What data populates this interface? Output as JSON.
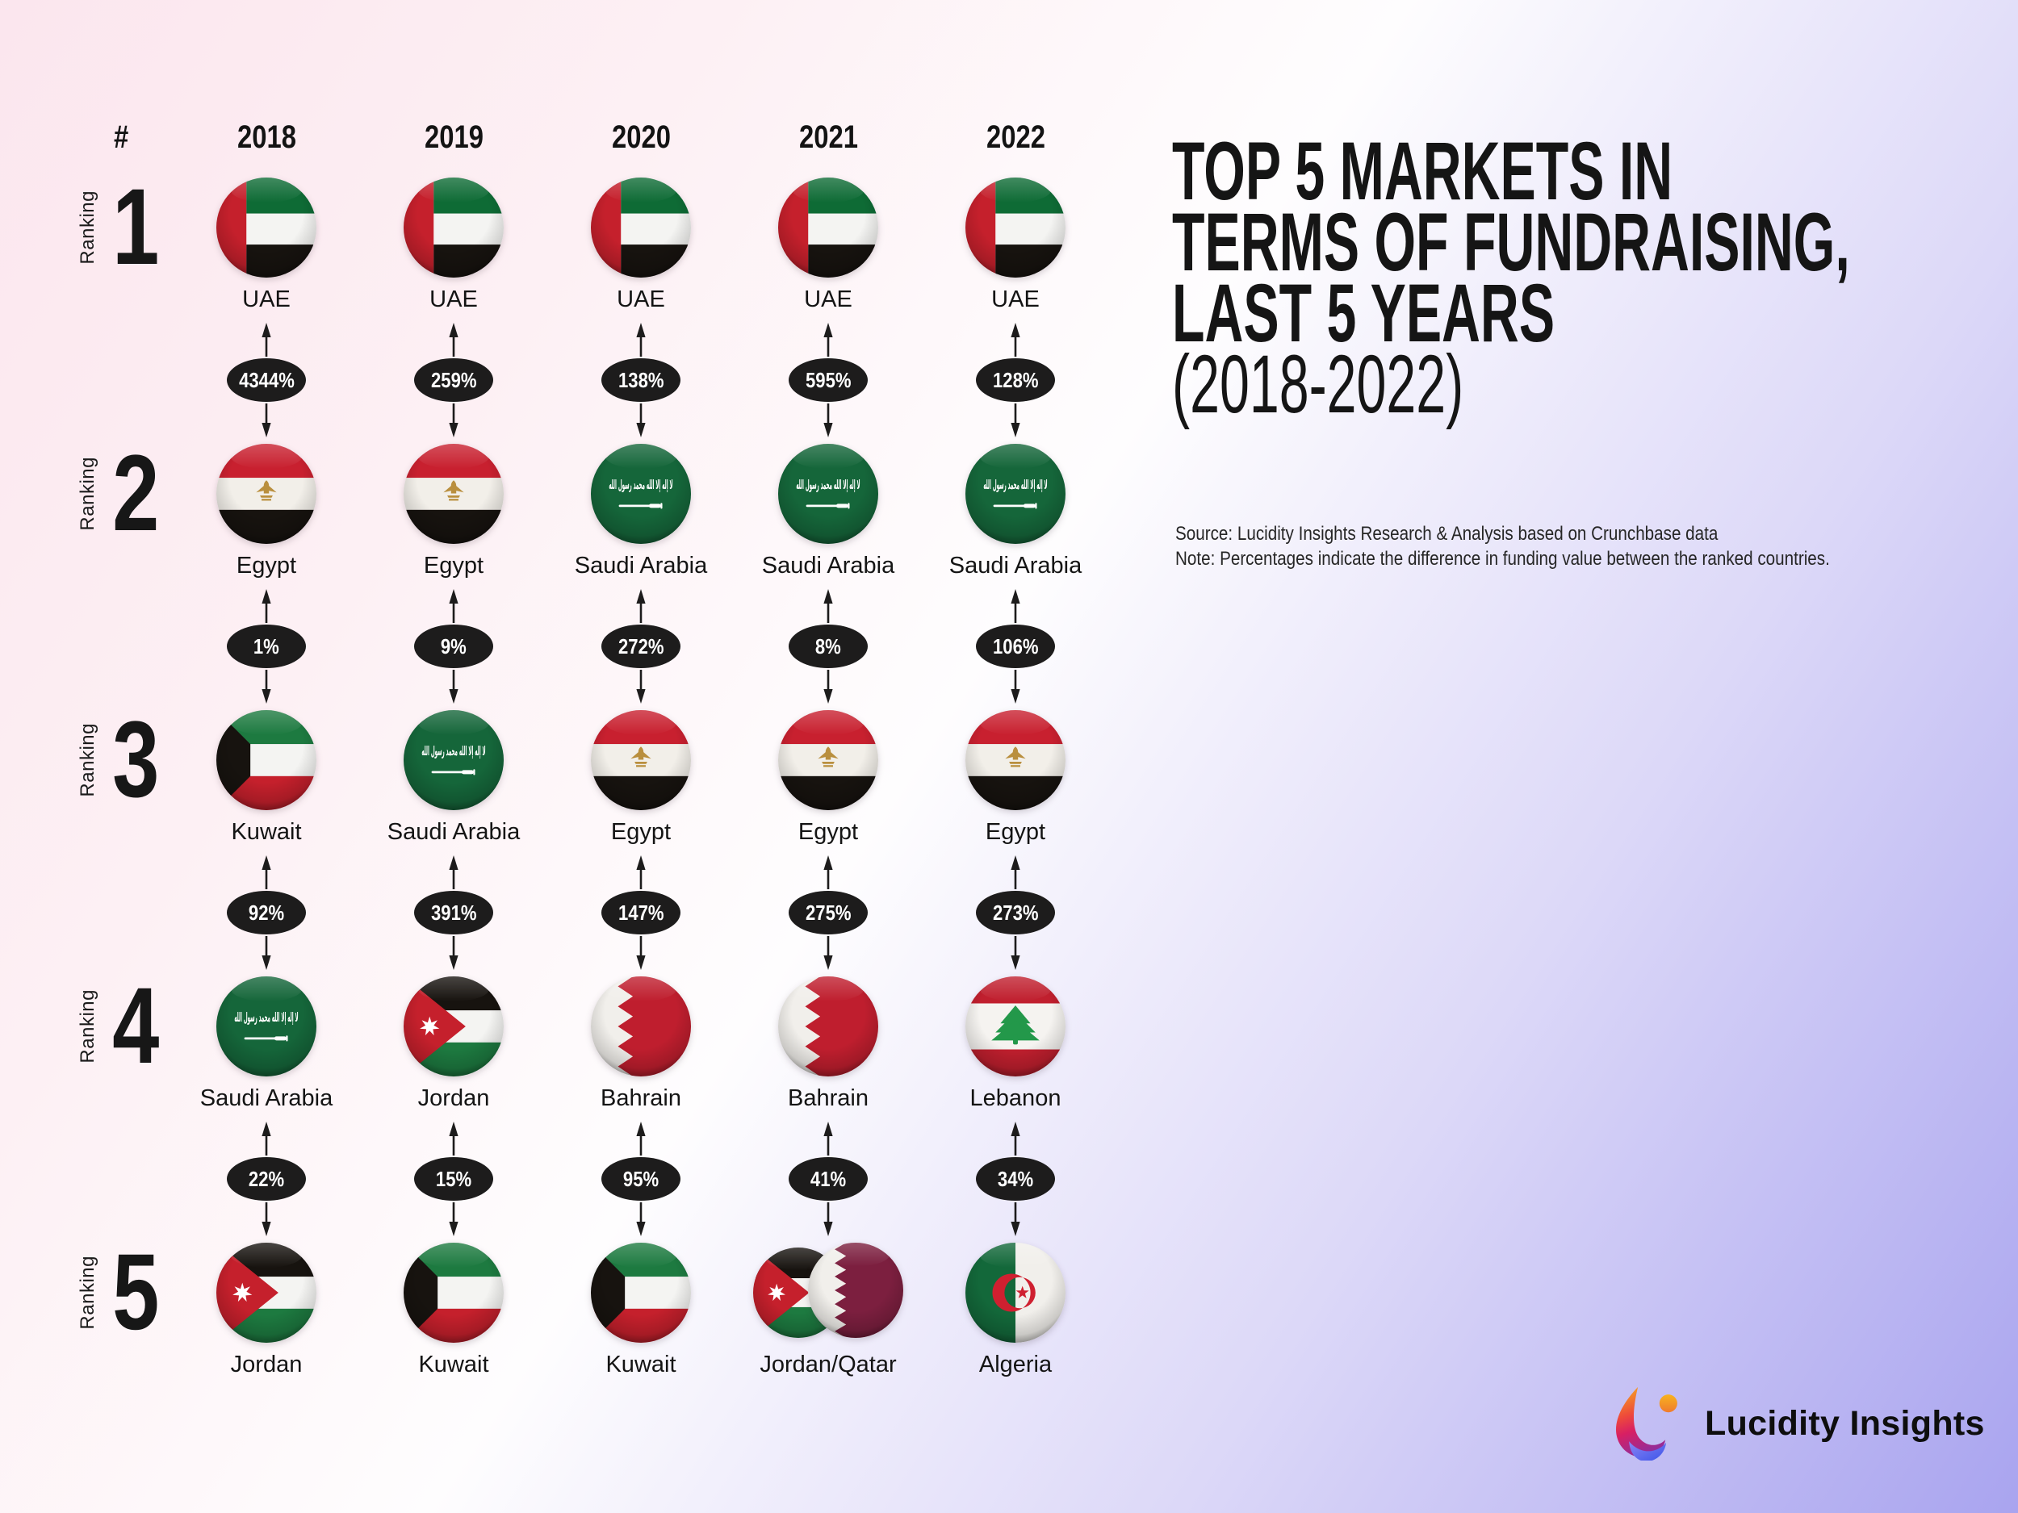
{
  "header": {
    "rank_symbol": "#",
    "ranking_label": "Ranking",
    "years": [
      "2018",
      "2019",
      "2020",
      "2021",
      "2022"
    ]
  },
  "rankings": [
    {
      "rank": "1",
      "cells": [
        {
          "country": "UAE",
          "flag": "uae"
        },
        {
          "country": "UAE",
          "flag": "uae"
        },
        {
          "country": "UAE",
          "flag": "uae"
        },
        {
          "country": "UAE",
          "flag": "uae"
        },
        {
          "country": "UAE",
          "flag": "uae"
        }
      ]
    },
    {
      "rank": "2",
      "cells": [
        {
          "country": "Egypt",
          "flag": "egypt"
        },
        {
          "country": "Egypt",
          "flag": "egypt"
        },
        {
          "country": "Saudi Arabia",
          "flag": "saudi"
        },
        {
          "country": "Saudi Arabia",
          "flag": "saudi"
        },
        {
          "country": "Saudi Arabia",
          "flag": "saudi"
        }
      ]
    },
    {
      "rank": "3",
      "cells": [
        {
          "country": "Kuwait",
          "flag": "kuwait"
        },
        {
          "country": "Saudi Arabia",
          "flag": "saudi"
        },
        {
          "country": "Egypt",
          "flag": "egypt"
        },
        {
          "country": "Egypt",
          "flag": "egypt"
        },
        {
          "country": "Egypt",
          "flag": "egypt"
        }
      ]
    },
    {
      "rank": "4",
      "cells": [
        {
          "country": "Saudi Arabia",
          "flag": "saudi"
        },
        {
          "country": "Jordan",
          "flag": "jordan"
        },
        {
          "country": "Bahrain",
          "flag": "bahrain"
        },
        {
          "country": "Bahrain",
          "flag": "bahrain"
        },
        {
          "country": "Lebanon",
          "flag": "lebanon"
        }
      ]
    },
    {
      "rank": "5",
      "cells": [
        {
          "country": "Jordan",
          "flag": "jordan"
        },
        {
          "country": "Kuwait",
          "flag": "kuwait"
        },
        {
          "country": "Kuwait",
          "flag": "kuwait"
        },
        {
          "country": "Jordan/Qatar",
          "flag": [
            "jordan",
            "qatar"
          ]
        },
        {
          "country": "Algeria",
          "flag": "algeria"
        }
      ]
    }
  ],
  "percent_rows": [
    [
      "4344%",
      "259%",
      "138%",
      "595%",
      "128%"
    ],
    [
      "1%",
      "9%",
      "272%",
      "8%",
      "106%"
    ],
    [
      "92%",
      "391%",
      "147%",
      "275%",
      "273%"
    ],
    [
      "22%",
      "15%",
      "95%",
      "41%",
      "34%"
    ]
  ],
  "title": {
    "lines": [
      "TOP 5 MARKETS IN",
      "TERMS OF FUNDRAISING,",
      "LAST 5 YEARS"
    ],
    "subtitle": "(2018-2022)"
  },
  "source_note": {
    "source": "Source: Lucidity Insights Research & Analysis based on Crunchbase data",
    "note": "Note: Percentages indicate the difference in funding value between the ranked countries."
  },
  "logo": {
    "text": "Lucidity Insights"
  },
  "colors": {
    "badge_bg": "#1d1c1c",
    "badge_text": "#ffffff",
    "title_text": "#151515",
    "bg_gradient": [
      "#fbe6ee",
      "#fefdfe",
      "#a9a4ef"
    ]
  },
  "chart_data": {
    "type": "table",
    "title": "Top 5 Markets in Terms of Fundraising, Last 5 Years (2018-2022)",
    "columns": [
      "2018",
      "2019",
      "2020",
      "2021",
      "2022"
    ],
    "rows": [
      {
        "rank": 1,
        "markets": [
          "UAE",
          "UAE",
          "UAE",
          "UAE",
          "UAE"
        ]
      },
      {
        "rank": 2,
        "markets": [
          "Egypt",
          "Egypt",
          "Saudi Arabia",
          "Saudi Arabia",
          "Saudi Arabia"
        ]
      },
      {
        "rank": 3,
        "markets": [
          "Kuwait",
          "Saudi Arabia",
          "Egypt",
          "Egypt",
          "Egypt"
        ]
      },
      {
        "rank": 4,
        "markets": [
          "Saudi Arabia",
          "Jordan",
          "Bahrain",
          "Bahrain",
          "Lebanon"
        ]
      },
      {
        "rank": 5,
        "markets": [
          "Jordan",
          "Kuwait",
          "Kuwait",
          "Jordan/Qatar",
          "Algeria"
        ]
      }
    ],
    "pct_difference_between_ranks": {
      "rank1_vs_rank2": [
        "4344%",
        "259%",
        "138%",
        "595%",
        "128%"
      ],
      "rank2_vs_rank3": [
        "1%",
        "9%",
        "272%",
        "8%",
        "106%"
      ],
      "rank3_vs_rank4": [
        "92%",
        "391%",
        "147%",
        "275%",
        "273%"
      ],
      "rank4_vs_rank5": [
        "22%",
        "15%",
        "95%",
        "41%",
        "34%"
      ]
    },
    "note": "Percentages indicate the difference in funding value between the ranked countries."
  }
}
